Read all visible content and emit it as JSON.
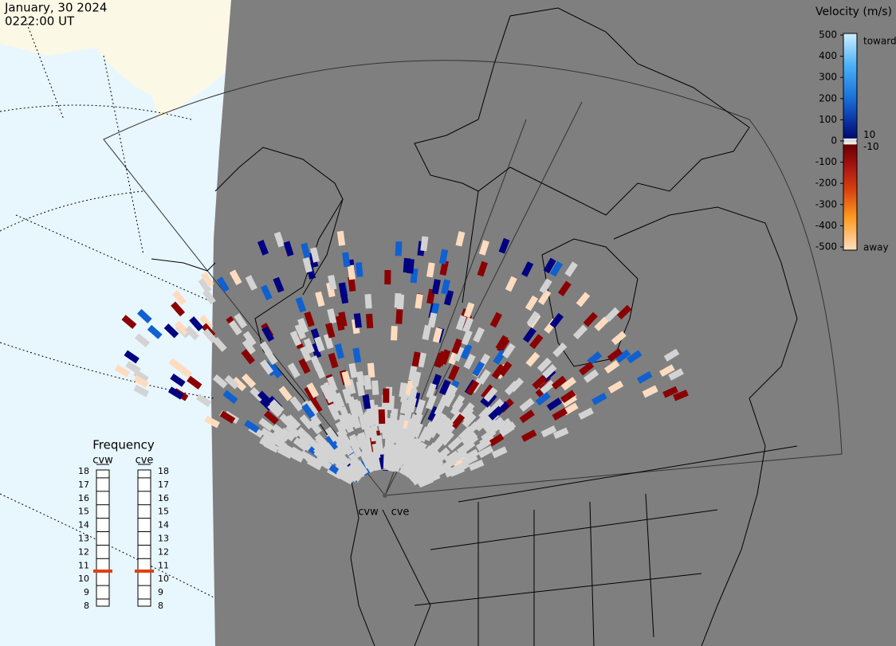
{
  "header": {
    "date": "January, 30 2024",
    "time": "0222:00 UT"
  },
  "velocity_scale": {
    "title": "Velocity (m/s)",
    "ticks": [
      500,
      400,
      300,
      200,
      100,
      0,
      -100,
      -200,
      -300,
      -400,
      -500
    ],
    "toward": "toward",
    "away": "away",
    "inner_ticks": [
      10,
      -10
    ]
  },
  "frequency": {
    "title": "Frequency",
    "ticks": [
      18,
      17,
      16,
      15,
      14,
      13,
      12,
      11,
      10,
      9,
      8
    ],
    "radars": [
      {
        "name": "cvw",
        "value": 10.6
      },
      {
        "name": "cve",
        "value": 10.6
      }
    ]
  },
  "map_labels": [
    "cvw",
    "cve"
  ]
}
